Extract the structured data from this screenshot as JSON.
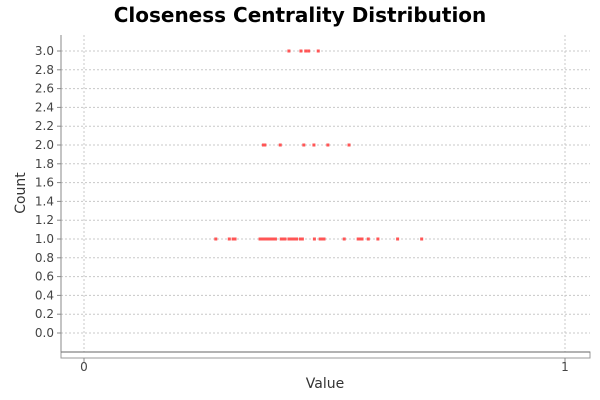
{
  "chart_data": {
    "type": "scatter",
    "title": "Closeness Centrality Distribution",
    "xlabel": "Value",
    "ylabel": "Count",
    "xlim": [
      0,
      1
    ],
    "ylim": [
      -0.1,
      3.2
    ],
    "x_ticks": [
      "0",
      "1"
    ],
    "y_ticks": [
      "0.0",
      "0.2",
      "0.4",
      "0.6",
      "0.8",
      "1.0",
      "1.2",
      "1.4",
      "1.6",
      "1.8",
      "2.0",
      "2.2",
      "2.4",
      "2.6",
      "2.8",
      "3.0"
    ],
    "grid": true,
    "point_color": "#ff5555",
    "points": [
      {
        "x": 0.274,
        "y": 1
      },
      {
        "x": 0.302,
        "y": 1
      },
      {
        "x": 0.31,
        "y": 1
      },
      {
        "x": 0.314,
        "y": 1
      },
      {
        "x": 0.366,
        "y": 1
      },
      {
        "x": 0.37,
        "y": 1
      },
      {
        "x": 0.374,
        "y": 1
      },
      {
        "x": 0.378,
        "y": 1
      },
      {
        "x": 0.382,
        "y": 1
      },
      {
        "x": 0.386,
        "y": 1
      },
      {
        "x": 0.39,
        "y": 1
      },
      {
        "x": 0.394,
        "y": 1
      },
      {
        "x": 0.398,
        "y": 1
      },
      {
        "x": 0.41,
        "y": 1
      },
      {
        "x": 0.414,
        "y": 1
      },
      {
        "x": 0.418,
        "y": 1
      },
      {
        "x": 0.426,
        "y": 1
      },
      {
        "x": 0.43,
        "y": 1
      },
      {
        "x": 0.434,
        "y": 1
      },
      {
        "x": 0.438,
        "y": 1
      },
      {
        "x": 0.442,
        "y": 1
      },
      {
        "x": 0.45,
        "y": 1
      },
      {
        "x": 0.454,
        "y": 1
      },
      {
        "x": 0.479,
        "y": 1
      },
      {
        "x": 0.491,
        "y": 1
      },
      {
        "x": 0.495,
        "y": 1
      },
      {
        "x": 0.499,
        "y": 1
      },
      {
        "x": 0.541,
        "y": 1
      },
      {
        "x": 0.57,
        "y": 1
      },
      {
        "x": 0.574,
        "y": 1
      },
      {
        "x": 0.578,
        "y": 1
      },
      {
        "x": 0.591,
        "y": 1
      },
      {
        "x": 0.611,
        "y": 1
      },
      {
        "x": 0.652,
        "y": 1
      },
      {
        "x": 0.702,
        "y": 1
      },
      {
        "x": 0.373,
        "y": 2
      },
      {
        "x": 0.376,
        "y": 2
      },
      {
        "x": 0.408,
        "y": 2
      },
      {
        "x": 0.457,
        "y": 2
      },
      {
        "x": 0.478,
        "y": 2
      },
      {
        "x": 0.507,
        "y": 2
      },
      {
        "x": 0.551,
        "y": 2
      },
      {
        "x": 0.426,
        "y": 3
      },
      {
        "x": 0.451,
        "y": 3
      },
      {
        "x": 0.461,
        "y": 3
      },
      {
        "x": 0.467,
        "y": 3
      },
      {
        "x": 0.487,
        "y": 3
      }
    ]
  }
}
